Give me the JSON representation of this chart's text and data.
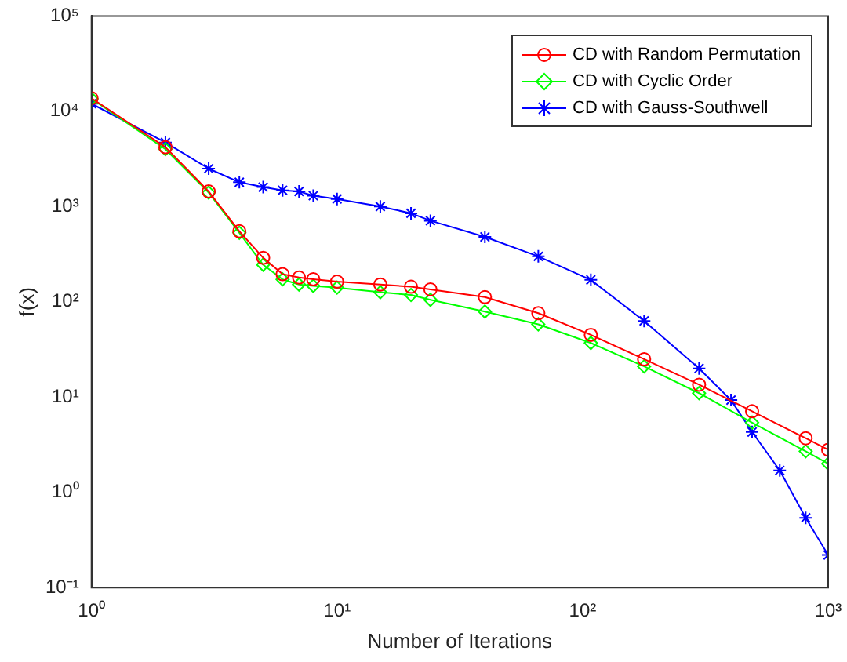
{
  "chart_data": {
    "type": "line",
    "xlabel": "Number of Iterations",
    "ylabel": "f(x)",
    "log": "xy",
    "grid": false,
    "legend": "top right",
    "line_style": "solid",
    "xlim": [
      1,
      1000
    ],
    "xticks": [
      {
        "value": 1,
        "label": "10⁰"
      },
      {
        "value": 10,
        "label": "10¹"
      },
      {
        "value": 100,
        "label": "10²"
      },
      {
        "value": 1000,
        "label": "10³"
      }
    ],
    "ylim": [
      0.1,
      100000
    ],
    "yticks": [
      {
        "value": 0.1,
        "label": "10⁻¹"
      },
      {
        "value": 1,
        "label": "10⁰"
      },
      {
        "value": 10,
        "label": "10¹"
      },
      {
        "value": 100,
        "label": "10²"
      },
      {
        "value": 1000,
        "label": "10³"
      },
      {
        "value": 10000,
        "label": "10⁴"
      },
      {
        "value": 100000,
        "label": "10⁵"
      }
    ],
    "series": [
      {
        "name": "CD with Random Permutation",
        "color": "#ff0000",
        "marker": "circle",
        "x": [
          1,
          2,
          3,
          4,
          5,
          6,
          7,
          8,
          10,
          15,
          20,
          24,
          40,
          66,
          108,
          178,
          298,
          490,
          810,
          1000
        ],
        "values": [
          13700,
          4200,
          1440,
          550,
          290,
          195,
          180,
          173,
          163,
          152,
          144,
          135,
          112,
          76,
          45,
          25,
          13.5,
          7.1,
          3.7,
          2.8
        ]
      },
      {
        "name": "CD with Cyclic Order",
        "color": "#00ff00",
        "marker": "diamond",
        "x": [
          1,
          2,
          3,
          4,
          5,
          6,
          7,
          8,
          10,
          15,
          20,
          24,
          40,
          66,
          108,
          178,
          298,
          490,
          810,
          1000
        ],
        "values": [
          13500,
          4000,
          1400,
          530,
          245,
          172,
          152,
          147,
          141,
          126,
          118,
          105,
          79,
          58,
          37,
          21,
          11,
          5.4,
          2.7,
          2.0
        ]
      },
      {
        "name": "CD with Gauss-Southwell",
        "color": "#0000ff",
        "marker": "cross",
        "x": [
          1,
          2,
          3,
          4,
          5,
          6,
          7,
          8,
          10,
          15,
          20,
          24,
          40,
          66,
          108,
          178,
          298,
          402,
          490,
          635,
          810,
          1000
        ],
        "values": [
          12000,
          4700,
          2500,
          1800,
          1600,
          1480,
          1440,
          1300,
          1200,
          1000,
          850,
          710,
          480,
          300,
          170,
          63,
          20,
          9.3,
          4.3,
          1.7,
          0.54,
          0.22
        ]
      }
    ]
  }
}
